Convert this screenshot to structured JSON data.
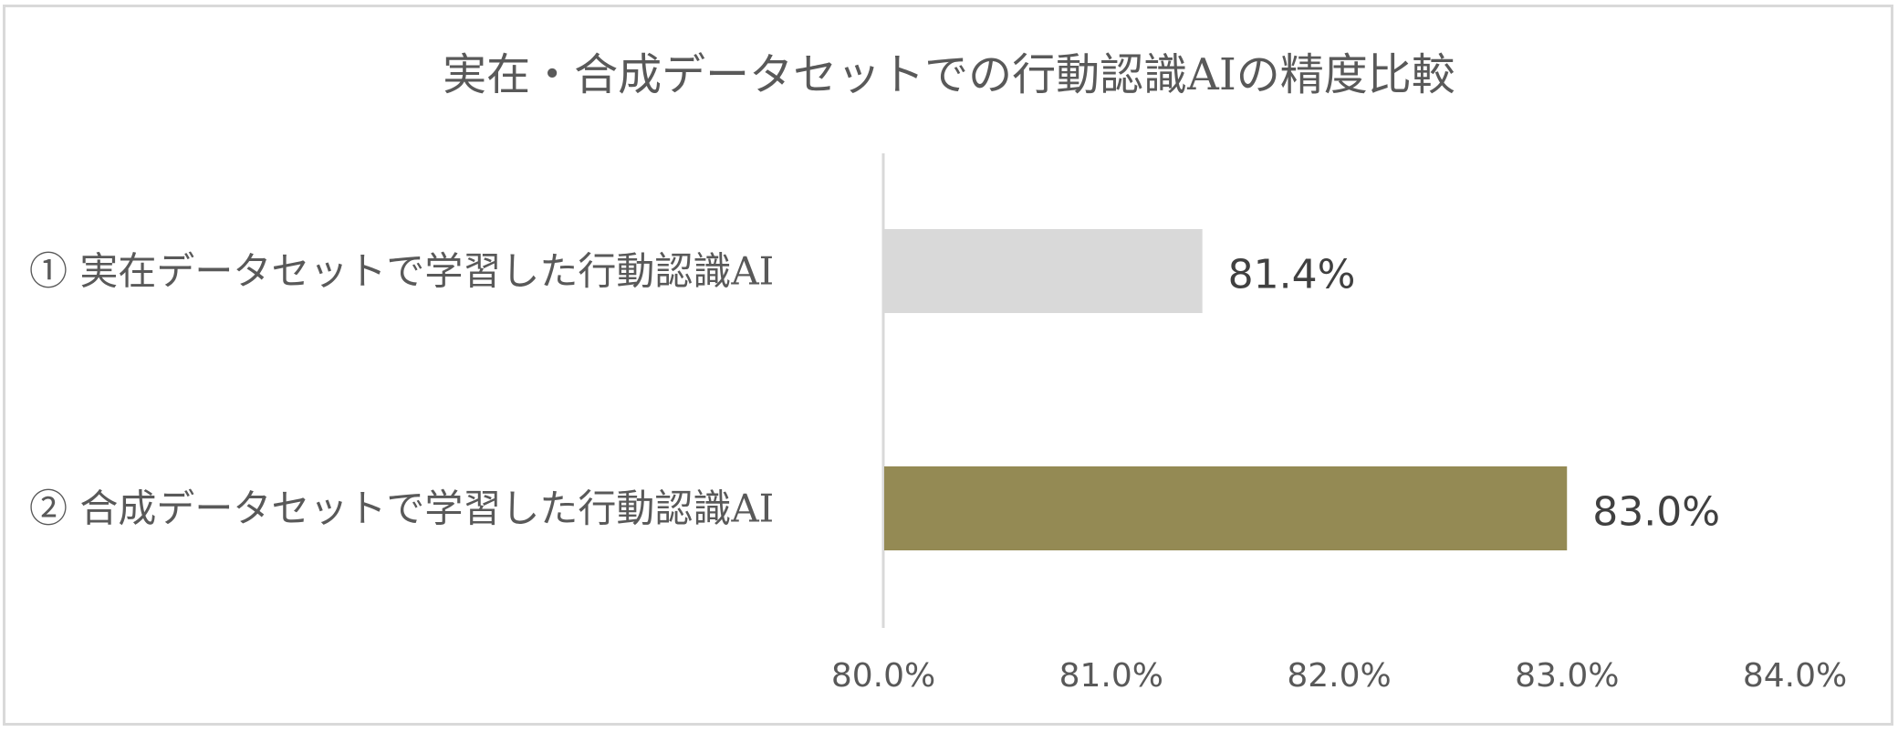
{
  "chart_data": {
    "type": "bar",
    "orientation": "horizontal",
    "title": "実在・合成データセットでの行動認識AIの精度比較",
    "categories": [
      "① 実在データセットで学習した行動認識AI",
      "② 合成データセットで学習した行動認識AI"
    ],
    "values": [
      81.4,
      83.0
    ],
    "value_labels": [
      "81.4%",
      "83.0%"
    ],
    "bar_colors": [
      "#d9d9d9",
      "#948a54"
    ],
    "xlim": [
      80.0,
      84.0
    ],
    "x_ticks": [
      "80.0%",
      "81.0%",
      "82.0%",
      "83.0%",
      "84.0%"
    ],
    "xlabel": "",
    "ylabel": "",
    "grid": false,
    "legend": "none"
  }
}
